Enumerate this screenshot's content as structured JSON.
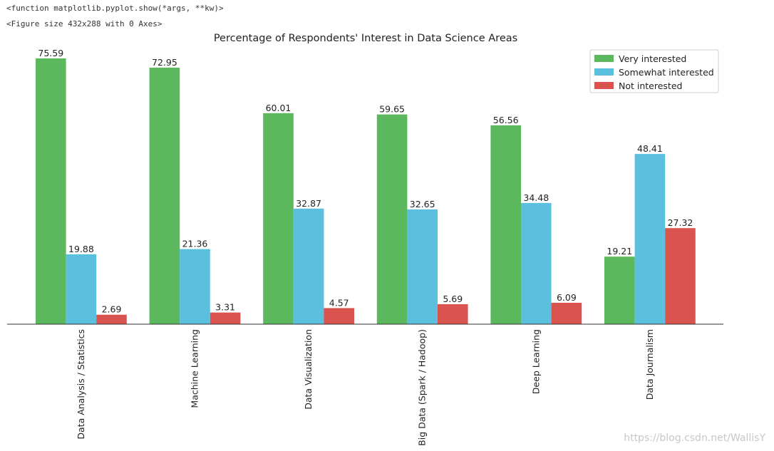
{
  "console": {
    "line1": "<function matplotlib.pyplot.show(*args, **kw)>",
    "line2": "<Figure size 432x288 with 0 Axes>"
  },
  "watermark": "https://blog.csdn.net/WallisY",
  "chart_data": {
    "type": "bar",
    "title": "Percentage of Respondents' Interest in Data Science Areas",
    "categories": [
      "Data Analysis / Statistics",
      "Machine Learning",
      "Data Visualization",
      "Big Data (Spark / Hadoop)",
      "Deep Learning",
      "Data Journalism"
    ],
    "series": [
      {
        "name": "Very interested",
        "color": "#5cb85c",
        "values": [
          75.59,
          72.95,
          60.01,
          59.65,
          56.56,
          19.21
        ]
      },
      {
        "name": "Somewhat interested",
        "color": "#5bc0de",
        "values": [
          19.88,
          21.36,
          32.87,
          32.65,
          34.48,
          48.41
        ]
      },
      {
        "name": "Not interested",
        "color": "#d9534f",
        "values": [
          2.69,
          3.31,
          4.57,
          5.69,
          6.09,
          27.32
        ]
      }
    ],
    "legend": "top-right",
    "grid": false,
    "ylim": [
      0,
      80
    ]
  }
}
